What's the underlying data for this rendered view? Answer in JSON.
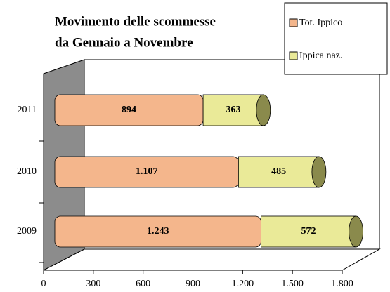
{
  "chart_data": {
    "type": "bar",
    "orientation": "horizontal",
    "stacked": true,
    "title": [
      "Movimento delle scommesse",
      "da Gennaio a Novembre"
    ],
    "categories": [
      "2011",
      "2010",
      "2009"
    ],
    "series": [
      {
        "name": "Tot. Ippico",
        "color": "#f4b68c",
        "values": [
          894,
          1107,
          1243
        ],
        "value_labels": [
          "894",
          "1.107",
          "1.243"
        ]
      },
      {
        "name": "Ippica naz.",
        "color": "#eaea98",
        "values": [
          363,
          485,
          572
        ],
        "value_labels": [
          "363",
          "485",
          "572"
        ]
      }
    ],
    "xlim": [
      0,
      1800
    ],
    "xticks": [
      0,
      300,
      600,
      900,
      {
        "value": 1200,
        "label": "1.200"
      },
      {
        "value": 1500,
        "label": "1.500"
      },
      {
        "value": 1800,
        "label": "1.800"
      }
    ],
    "cap_color": "#8a8a4c"
  }
}
